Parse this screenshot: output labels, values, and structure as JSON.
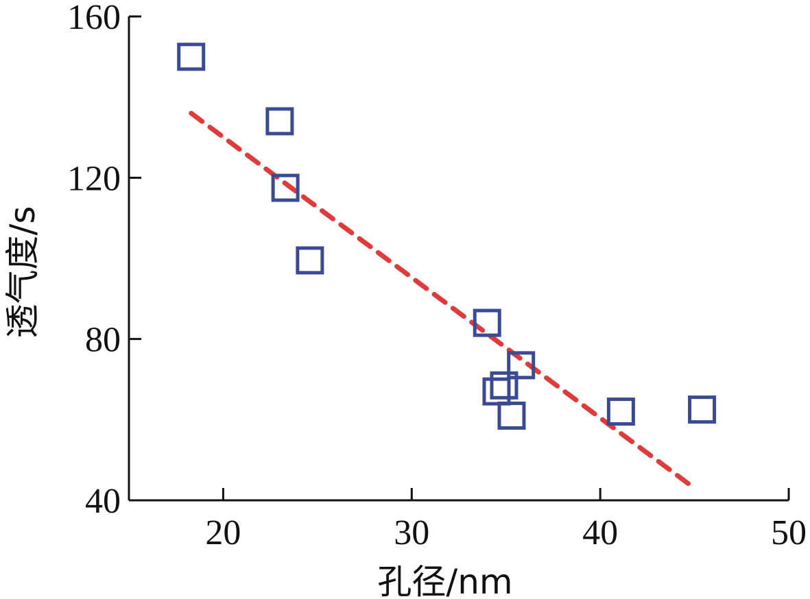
{
  "chart_data": {
    "type": "scatter",
    "title": "",
    "xlabel": "孔径/nm",
    "ylabel": "透气度/s",
    "xlim": [
      15,
      50
    ],
    "ylim": [
      40,
      160
    ],
    "xticks": [
      20,
      30,
      40,
      50
    ],
    "yticks": [
      40,
      80,
      120,
      160
    ],
    "grid": false,
    "colors": {
      "marker": "#3a4a94",
      "trend": "#e03a3a",
      "axis": "#111111"
    },
    "series": [
      {
        "marker": "open-square",
        "points": [
          {
            "x": 18.3,
            "y": 150
          },
          {
            "x": 23.0,
            "y": 134
          },
          {
            "x": 23.3,
            "y": 117.5
          },
          {
            "x": 24.6,
            "y": 99.5
          },
          {
            "x": 34.0,
            "y": 84
          },
          {
            "x": 35.8,
            "y": 73.5
          },
          {
            "x": 34.5,
            "y": 67
          },
          {
            "x": 34.9,
            "y": 68.5
          },
          {
            "x": 35.3,
            "y": 61
          },
          {
            "x": 41.1,
            "y": 62
          },
          {
            "x": 45.4,
            "y": 62.5
          }
        ]
      }
    ],
    "trendline": {
      "style": "dashed",
      "points": [
        {
          "x": 18.3,
          "y": 136
        },
        {
          "x": 45.0,
          "y": 43
        }
      ]
    }
  }
}
